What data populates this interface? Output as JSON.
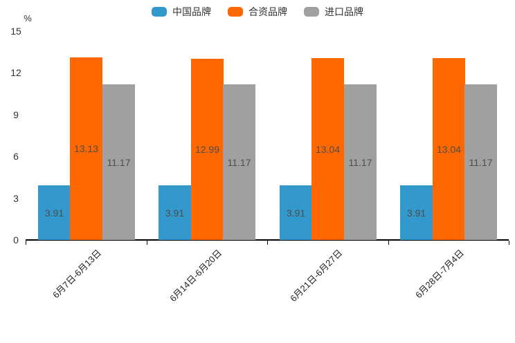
{
  "chart_data": {
    "type": "bar",
    "title": "",
    "xlabel": "",
    "ylabel": "%",
    "ylim": [
      0,
      15
    ],
    "yticks": [
      0,
      3,
      6,
      9,
      12,
      15
    ],
    "grid": false,
    "legend_position": "top",
    "value_labels_position": "inside-center",
    "categories": [
      "6月7日-6月13日",
      "6月14日-6月20日",
      "6月21日-6月27日",
      "6月28日-7月4日"
    ],
    "series": [
      {
        "name": "中国品牌",
        "color": "#3398cc",
        "values": [
          3.91,
          3.91,
          3.91,
          3.91
        ]
      },
      {
        "name": "合资品牌",
        "color": "#ff6700",
        "values": [
          13.13,
          12.99,
          13.04,
          13.04
        ]
      },
      {
        "name": "进口品牌",
        "color": "#a0a0a0",
        "values": [
          11.17,
          11.17,
          11.17,
          11.17
        ]
      }
    ],
    "colors": {
      "axis_line": "#000000",
      "tick_label": "#333333",
      "value_label": "#4d4d4d",
      "background": "#ffffff"
    }
  }
}
